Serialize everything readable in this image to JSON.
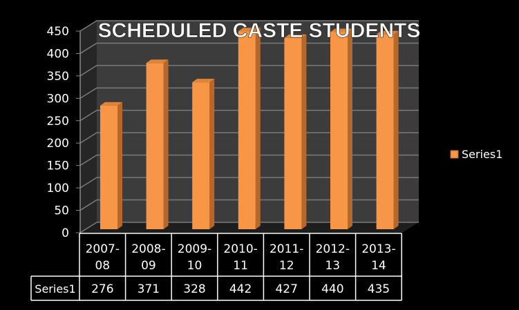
{
  "chart_data": {
    "type": "bar",
    "title": "SCHEDULED CASTE STUDENTS",
    "categories": [
      [
        "2007-",
        "08"
      ],
      [
        "2008-",
        "09"
      ],
      [
        "2009-",
        "10"
      ],
      [
        "2010-",
        "11"
      ],
      [
        "2011-",
        "12"
      ],
      [
        "2012-",
        "13"
      ],
      [
        "2013-",
        "14"
      ]
    ],
    "series": [
      {
        "name": "Series1",
        "values": [
          276,
          371,
          328,
          442,
          427,
          440,
          435
        ],
        "color": "#f79646"
      }
    ],
    "yticks": [
      0,
      50,
      100,
      150,
      200,
      250,
      300,
      350,
      400,
      450
    ],
    "ylim": [
      0,
      450
    ],
    "grid": true,
    "legend": "right",
    "data_table": true,
    "xlabel": "",
    "ylabel": ""
  }
}
